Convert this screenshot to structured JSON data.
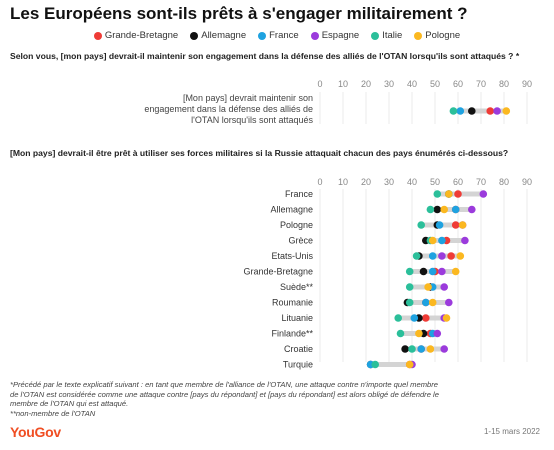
{
  "header": {
    "title": "Les Européens sont-ils prêts à s'engager militairement ?"
  },
  "legend": [
    {
      "name": "Grande-Bretagne",
      "color": "#ef3b36"
    },
    {
      "name": "Allemagne",
      "color": "#111111"
    },
    {
      "name": "France",
      "color": "#1ea2e0"
    },
    {
      "name": "Espagne",
      "color": "#9b3bdc"
    },
    {
      "name": "Italie",
      "color": "#2bbf9a"
    },
    {
      "name": "Pologne",
      "color": "#fbb820"
    }
  ],
  "questions": {
    "q1": "Selon vous, [mon pays] devrait-il maintenir son engagement dans la défense des alliés de l'OTAN lorsqu'ils sont attaqués ? *",
    "q2": "[Mon pays] devrait-il être prêt à utiliser ses forces militaires si la Russie attaquait chacun des pays énumérés ci-dessous?"
  },
  "chart_data": [
    {
      "type": "scatter",
      "ticks": [
        0,
        10,
        20,
        30,
        40,
        50,
        60,
        70,
        80,
        90
      ],
      "xlim": [
        0,
        90
      ],
      "series_order": [
        "Grande-Bretagne",
        "Allemagne",
        "France",
        "Espagne",
        "Italie",
        "Pologne"
      ],
      "rows": [
        {
          "label": "[Mon pays] devrait maintenir son engagement dans la défense des alliés de l'OTAN lorsqu'ils sont attaqués",
          "values": [
            74,
            66,
            61,
            77,
            58,
            81
          ]
        }
      ]
    },
    {
      "type": "scatter",
      "ticks": [
        0,
        10,
        20,
        30,
        40,
        50,
        60,
        70,
        80,
        90
      ],
      "xlim": [
        0,
        90
      ],
      "series_order": [
        "Grande-Bretagne",
        "Allemagne",
        "France",
        "Espagne",
        "Italie",
        "Pologne"
      ],
      "rows": [
        {
          "label": "France",
          "values": [
            60,
            56,
            56,
            71,
            51,
            56
          ]
        },
        {
          "label": "Allemagne",
          "values": [
            59,
            51,
            59,
            66,
            48,
            54
          ]
        },
        {
          "label": "Pologne",
          "values": [
            59,
            51,
            52,
            62,
            44,
            62
          ]
        },
        {
          "label": "Grèce",
          "values": [
            55,
            46,
            53,
            63,
            48,
            49
          ]
        },
        {
          "label": "Etats-Unis",
          "values": [
            57,
            43,
            49,
            53,
            42,
            61
          ]
        },
        {
          "label": "Grande-Bretagne",
          "values": [
            50,
            45,
            49,
            53,
            39,
            59
          ]
        },
        {
          "label": "Suède**",
          "values": [
            48,
            48,
            49,
            54,
            39,
            47
          ]
        },
        {
          "label": "Roumanie",
          "values": [
            46,
            38,
            46,
            56,
            39,
            49
          ]
        },
        {
          "label": "Lituanie",
          "values": [
            46,
            43,
            41,
            54,
            34,
            55
          ]
        },
        {
          "label": "Finlande**",
          "values": [
            48,
            45,
            49,
            51,
            35,
            43
          ]
        },
        {
          "label": "Croatie",
          "values": [
            44,
            37,
            44,
            54,
            40,
            48
          ]
        },
        {
          "label": "Turquie",
          "values": [
            39,
            22,
            22,
            40,
            24,
            39
          ]
        }
      ]
    }
  ],
  "footnote": {
    "line1": "*Précédé par le texte explicatif suivant : en tant que membre de l'alliance de l'OTAN, une attaque contre n'importe quel membre",
    "line2": "de l'OTAN est considérée comme une attaque contre [pays du répondant] et [pays du répondant] est alors obligé de défendre le",
    "line3": "membre de l'OTAN qui est attaqué.",
    "line4": "**non-membre de l'OTAN"
  },
  "brand": {
    "logo": "YouGov",
    "date": "1-15 mars 2022"
  }
}
